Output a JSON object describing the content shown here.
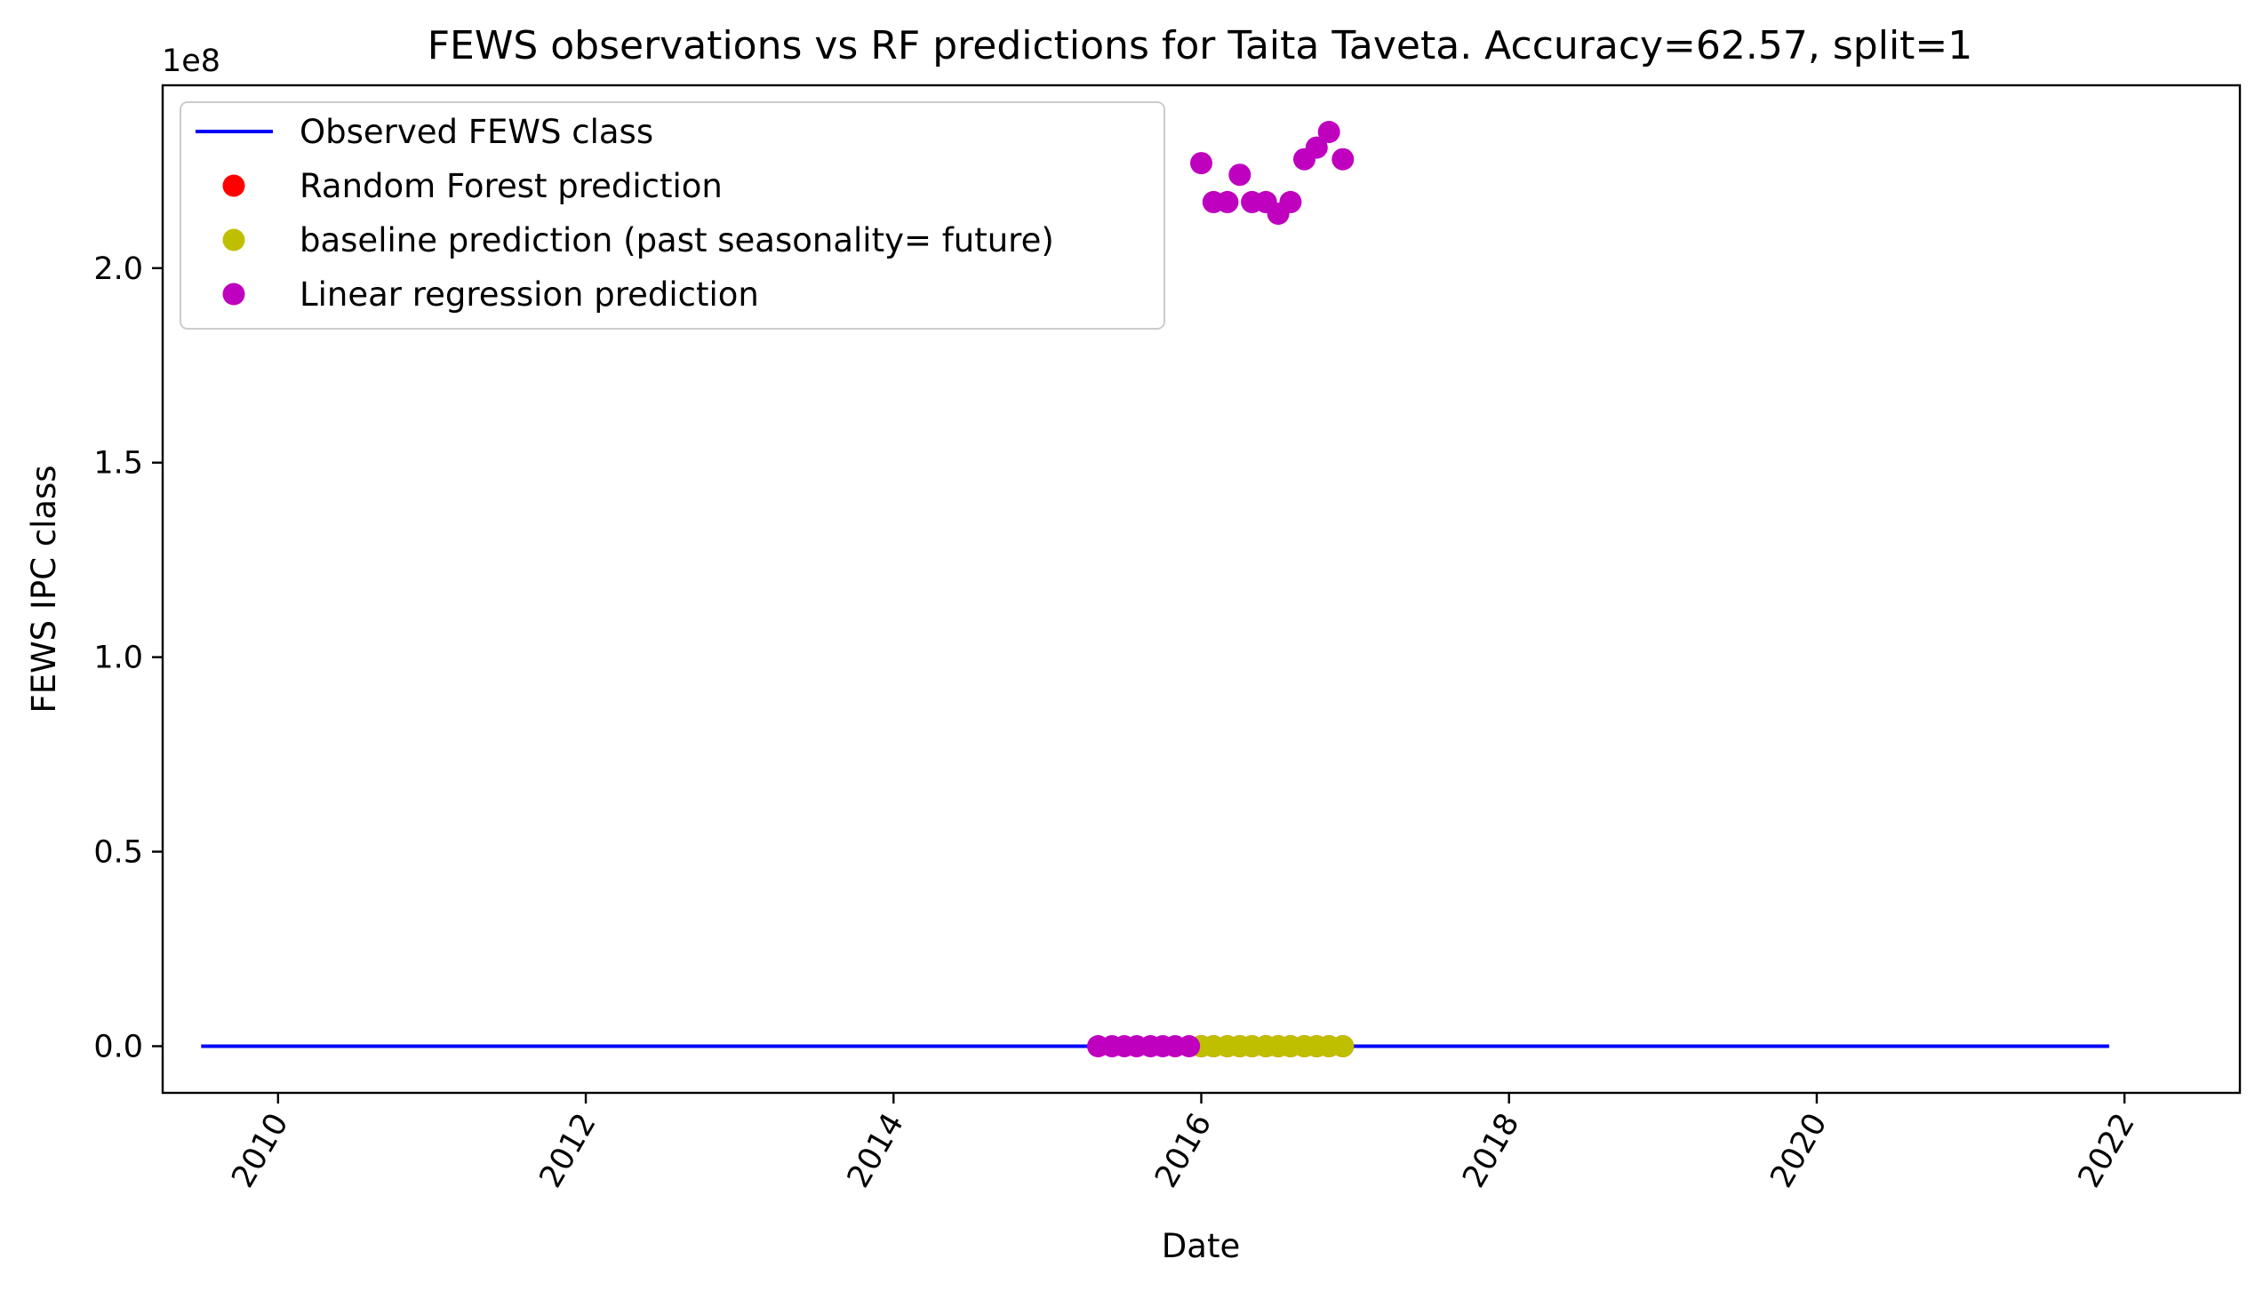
{
  "chart_data": {
    "type": "scatter",
    "title": "FEWS observations vs RF predictions for Taita Taveta. Accuracy=62.57, split=1",
    "xlabel": "Date",
    "ylabel": "FEWS IPC class",
    "y_offset_label": "1e8",
    "xlim": [
      2009.25,
      2022.75
    ],
    "ylim": [
      -12000000,
      247000000
    ],
    "x_ticks": [
      2010,
      2012,
      2014,
      2016,
      2018,
      2020,
      2022
    ],
    "x_tick_labels": [
      "2010",
      "2012",
      "2014",
      "2016",
      "2018",
      "2020",
      "2022"
    ],
    "y_ticks": [
      0,
      50000000,
      100000000,
      150000000,
      200000000
    ],
    "y_tick_labels": [
      "0.0",
      "0.5",
      "1.0",
      "1.5",
      "2.0"
    ],
    "legend_position": "upper-left",
    "grid": false,
    "series": [
      {
        "name": "Observed FEWS class",
        "kind": "line",
        "color": "#0000ff",
        "x": [
          2009.5,
          2021.9
        ],
        "y": [
          0,
          0
        ]
      },
      {
        "name": "Random Forest prediction",
        "kind": "markers",
        "color": "#ff0000",
        "x": [
          2016.0,
          2016.08,
          2016.17,
          2016.25,
          2016.33,
          2016.42,
          2016.5,
          2016.58,
          2016.67,
          2016.75,
          2016.83,
          2016.92
        ],
        "y": [
          0,
          0,
          0,
          0,
          0,
          0,
          0,
          0,
          0,
          0,
          0,
          0
        ]
      },
      {
        "name": "baseline prediction (past seasonality= future)",
        "kind": "markers",
        "color": "#bfbf00",
        "x": [
          2016.0,
          2016.08,
          2016.17,
          2016.25,
          2016.33,
          2016.42,
          2016.5,
          2016.58,
          2016.67,
          2016.75,
          2016.83,
          2016.92
        ],
        "y": [
          0,
          0,
          0,
          0,
          0,
          0,
          0,
          0,
          0,
          0,
          0,
          0
        ]
      },
      {
        "name": "Linear regression prediction",
        "kind": "markers",
        "color": "#bf00bf",
        "x": [
          2015.33,
          2015.42,
          2015.5,
          2015.58,
          2015.67,
          2015.75,
          2015.83,
          2015.92,
          2016.0,
          2016.08,
          2016.17,
          2016.25,
          2016.33,
          2016.42,
          2016.5,
          2016.58,
          2016.67,
          2016.75,
          2016.83,
          2016.92
        ],
        "y": [
          0,
          0,
          0,
          0,
          0,
          0,
          0,
          0,
          227000000,
          217000000,
          217000000,
          224000000,
          217000000,
          217000000,
          214000000,
          217000000,
          228000000,
          231000000,
          235000000,
          228000000
        ]
      }
    ]
  }
}
